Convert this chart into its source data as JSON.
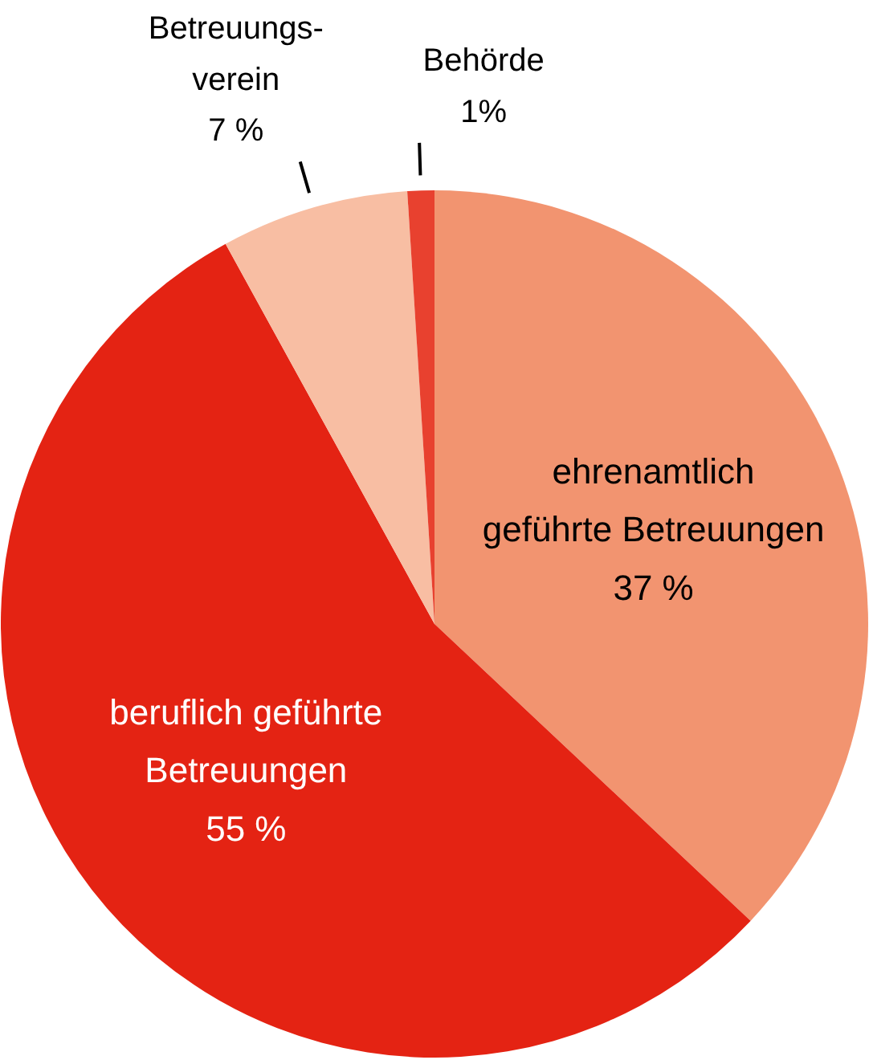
{
  "chart_data": {
    "type": "pie",
    "categories": [
      "ehrenamtlich\ngeführte Betreuungen",
      "beruflich geführte\nBetreuungen",
      "Betreuungs-\nverein",
      "Behörde"
    ],
    "values": [
      37,
      55,
      7,
      1
    ],
    "colors": [
      "#f29470",
      "#e42313",
      "#f8bea3",
      "#e8412f"
    ],
    "value_labels": [
      "37 %",
      "55 %",
      "7 %",
      "1%"
    ]
  }
}
